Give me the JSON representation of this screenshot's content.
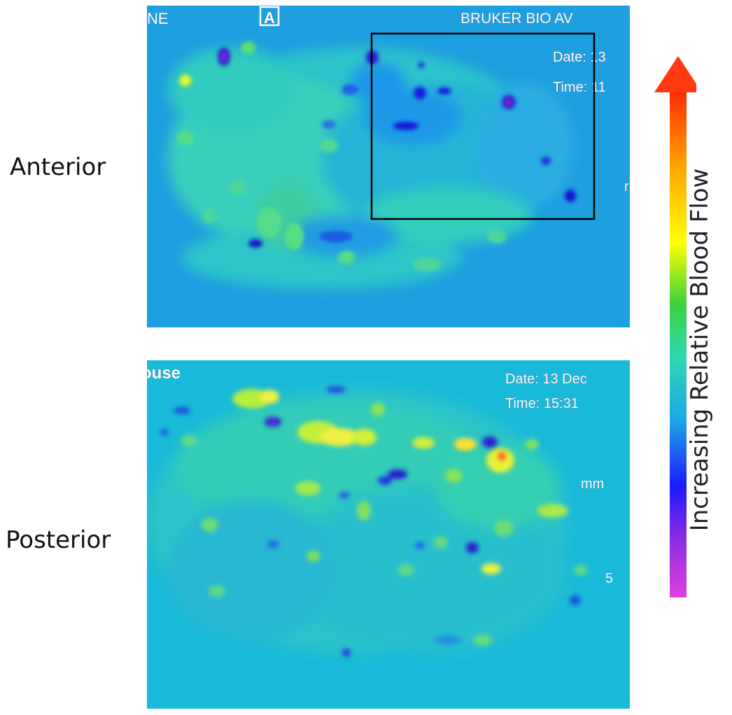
{
  "labels": {
    "anterior": "Anterior",
    "posterior": "Posterior"
  },
  "anterior_panel": {
    "corner_left": "NE",
    "marker": "A",
    "vendor": "BRUKER BIO AV",
    "date_text": "Date: 13",
    "time_text": "Time: 11",
    "edge_char": "r",
    "background_color": "#1e9fe0"
  },
  "posterior_panel": {
    "corner_left": "ouse",
    "date_text": "Date: 13 Dec",
    "time_text": "Time: 15:31",
    "unit": "mm",
    "scale_value": "5",
    "background_color": "#19b9d9"
  },
  "colorbar": {
    "label": "Increasing Relative Blood Flow",
    "gradient_bottom_to_top": [
      "#e040e0",
      "#8a2be2",
      "#1a1aff",
      "#1ea6e6",
      "#2ed6b4",
      "#3cd23c",
      "#ffff00",
      "#ffa500",
      "#ff2a00"
    ],
    "arrow_color": "#ff3a10"
  }
}
